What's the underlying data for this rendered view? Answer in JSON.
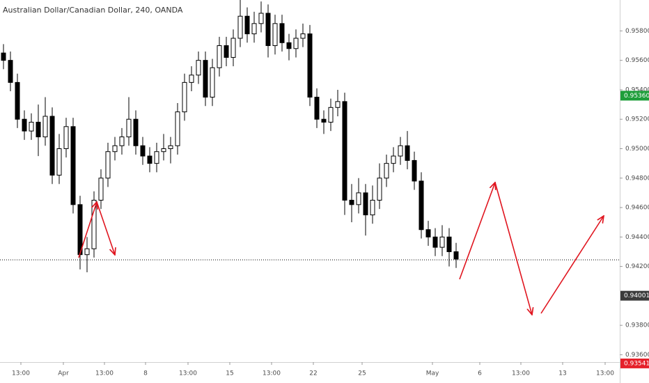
{
  "chart_data": {
    "type": "candlestick",
    "title": "Australian Dollar/Canadian Dollar, 240, OANDA",
    "series": [
      {
        "name": "AUDCAD",
        "open": [
          0.9565,
          0.956,
          0.9545,
          0.952,
          0.9512,
          0.9518,
          0.9508,
          0.9522,
          0.9482,
          0.95,
          0.9515,
          0.9462,
          0.9428,
          0.9432,
          0.9465,
          0.948,
          0.9498,
          0.9502,
          0.9508,
          0.952,
          0.9502,
          0.9495,
          0.949,
          0.9498,
          0.95,
          0.9502,
          0.9525,
          0.9545,
          0.955,
          0.956,
          0.9535,
          0.9555,
          0.957,
          0.9562,
          0.9575,
          0.959,
          0.9578,
          0.9585,
          0.9592,
          0.957,
          0.9585,
          0.9572,
          0.9568,
          0.9575,
          0.9578,
          0.9535,
          0.952,
          0.9518,
          0.9528,
          0.9532,
          0.9465,
          0.9462,
          0.947,
          0.9455,
          0.9465,
          0.948,
          0.949,
          0.9495,
          0.9502,
          0.9492,
          0.9478,
          0.9445,
          0.944,
          0.9433,
          0.944,
          0.943
        ],
        "high": [
          0.9571,
          0.9566,
          0.9551,
          0.9526,
          0.9524,
          0.953,
          0.9535,
          0.9528,
          0.951,
          0.9521,
          0.9521,
          0.9468,
          0.944,
          0.9471,
          0.9486,
          0.9504,
          0.9508,
          0.9514,
          0.9535,
          0.9526,
          0.9508,
          0.9501,
          0.9504,
          0.951,
          0.9508,
          0.9531,
          0.9551,
          0.9556,
          0.9566,
          0.9566,
          0.9561,
          0.9576,
          0.9576,
          0.9581,
          0.9601,
          0.9596,
          0.9593,
          0.96,
          0.9598,
          0.9591,
          0.9591,
          0.9578,
          0.9581,
          0.9585,
          0.9584,
          0.9541,
          0.9526,
          0.9534,
          0.954,
          0.9538,
          0.9476,
          0.948,
          0.9476,
          0.9475,
          0.949,
          0.9496,
          0.9501,
          0.9508,
          0.9512,
          0.9498,
          0.9484,
          0.9451,
          0.9446,
          0.9448,
          0.9446,
          0.9436
        ],
        "low": [
          0.9554,
          0.9539,
          0.9514,
          0.9506,
          0.9506,
          0.9495,
          0.9502,
          0.9476,
          0.9476,
          0.9494,
          0.9456,
          0.9418,
          0.9416,
          0.9426,
          0.9459,
          0.9474,
          0.9492,
          0.9496,
          0.9502,
          0.9496,
          0.9489,
          0.9484,
          0.9484,
          0.9492,
          0.949,
          0.9496,
          0.9519,
          0.9539,
          0.9544,
          0.9529,
          0.9529,
          0.9549,
          0.9556,
          0.9556,
          0.9569,
          0.9572,
          0.9572,
          0.9579,
          0.9562,
          0.9564,
          0.9566,
          0.956,
          0.9562,
          0.9569,
          0.9529,
          0.9514,
          0.951,
          0.9512,
          0.9522,
          0.9455,
          0.945,
          0.9456,
          0.9441,
          0.9449,
          0.9459,
          0.9474,
          0.9484,
          0.9489,
          0.9486,
          0.9472,
          0.9439,
          0.9434,
          0.9427,
          0.9427,
          0.942,
          0.9419
        ],
        "close": [
          0.956,
          0.9545,
          0.952,
          0.9512,
          0.9518,
          0.9508,
          0.9522,
          0.9482,
          0.95,
          0.9515,
          0.9462,
          0.9428,
          0.9432,
          0.9465,
          0.948,
          0.9498,
          0.9502,
          0.9508,
          0.952,
          0.9502,
          0.9495,
          0.949,
          0.9498,
          0.95,
          0.9502,
          0.9525,
          0.9545,
          0.955,
          0.956,
          0.9535,
          0.9555,
          0.957,
          0.9562,
          0.9575,
          0.959,
          0.9578,
          0.9585,
          0.9592,
          0.957,
          0.9585,
          0.9572,
          0.9568,
          0.9575,
          0.9578,
          0.9535,
          0.952,
          0.9518,
          0.9528,
          0.9532,
          0.9465,
          0.9462,
          0.947,
          0.9455,
          0.9465,
          0.948,
          0.949,
          0.9495,
          0.9502,
          0.9492,
          0.9478,
          0.9445,
          0.944,
          0.9433,
          0.944,
          0.943,
          0.9425
        ],
        "up_color": "#ffffff",
        "down_color": "#000000",
        "edge_color": "#000000"
      }
    ],
    "xlim": [
      0,
      89
    ],
    "xticks": [
      {
        "value": 3,
        "label": "13:00"
      },
      {
        "value": 9.1,
        "label": "Apr"
      },
      {
        "value": 15,
        "label": "13:00"
      },
      {
        "value": 20.9,
        "label": "8"
      },
      {
        "value": 27,
        "label": "13:00"
      },
      {
        "value": 33,
        "label": "15"
      },
      {
        "value": 39,
        "label": "13:00"
      },
      {
        "value": 45,
        "label": "22"
      },
      {
        "value": 52,
        "label": "25"
      },
      {
        "value": 62.1,
        "label": "May"
      },
      {
        "value": 68.9,
        "label": "6"
      },
      {
        "value": 74.8,
        "label": "13:00"
      },
      {
        "value": 80.8,
        "label": "13"
      },
      {
        "value": 86.9,
        "label": "13:00"
      }
    ],
    "ylim": [
      0.9355,
      0.9601
    ],
    "yticks": [
      {
        "value": 0.936,
        "label": "0.93600"
      },
      {
        "value": 0.938,
        "label": "0.93800"
      },
      {
        "value": 0.942,
        "label": "0.94200"
      },
      {
        "value": 0.944,
        "label": "0.94400"
      },
      {
        "value": 0.946,
        "label": "0.94600"
      },
      {
        "value": 0.948,
        "label": "0.94800"
      },
      {
        "value": 0.95,
        "label": "0.95000"
      },
      {
        "value": 0.952,
        "label": "0.95200"
      },
      {
        "value": 0.954,
        "label": "0.95400"
      },
      {
        "value": 0.956,
        "label": "0.95600"
      },
      {
        "value": 0.958,
        "label": "0.95800"
      }
    ],
    "price_labels": [
      {
        "value": 0.9536,
        "label": "0.95360",
        "color": "#1e9e3a"
      },
      {
        "value": 0.94001,
        "label": "0.94001",
        "color": "#3b3b3b"
      },
      {
        "value": 0.93541,
        "label": "0.93541",
        "color": "#e5202a"
      }
    ],
    "horizontal_line": 0.94245,
    "grid": false
  }
}
